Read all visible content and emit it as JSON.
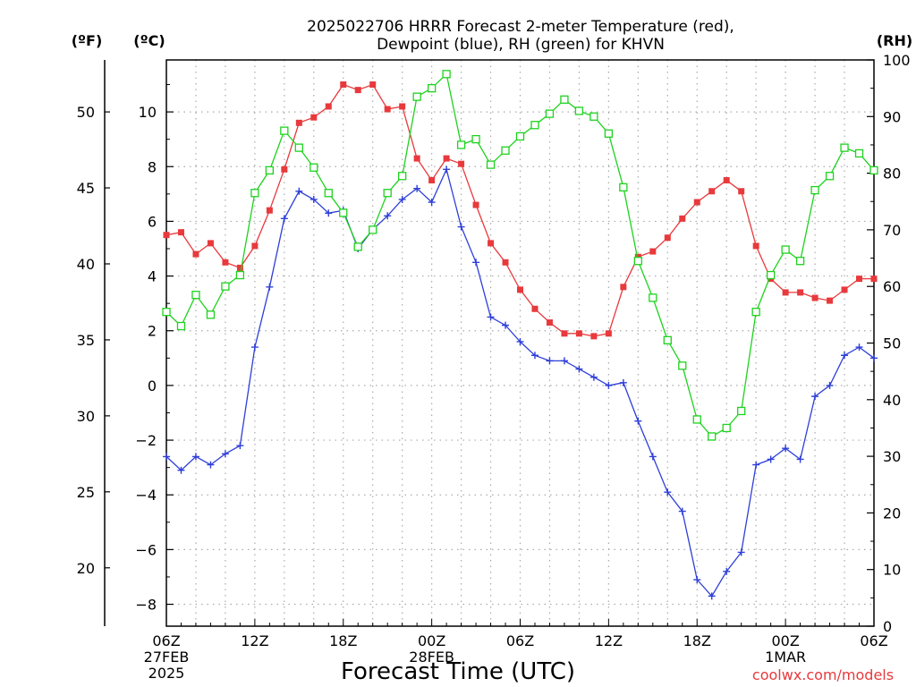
{
  "chart_data": {
    "type": "line",
    "title_line1": "2025022706 HRRR Forecast 2-meter Temperature (red),",
    "title_line2": "Dewpoint (blue), RH (green) for KHVN",
    "xlabel": "Forecast Time (UTC)",
    "units": {
      "fahrenheit": "(ºF)",
      "celsius": "(ºC)",
      "rh": "(RH)"
    },
    "credit": "coolwx.com/models",
    "x_ticks": [
      {
        "hour": 0,
        "line1": "06Z",
        "line2": "27FEB",
        "line3": "2025"
      },
      {
        "hour": 6,
        "line1": "12Z"
      },
      {
        "hour": 12,
        "line1": "18Z"
      },
      {
        "hour": 18,
        "line1": "00Z",
        "line2": "28FEB"
      },
      {
        "hour": 24,
        "line1": "06Z"
      },
      {
        "hour": 30,
        "line1": "12Z"
      },
      {
        "hour": 36,
        "line1": "18Z"
      },
      {
        "hour": 42,
        "line1": "00Z",
        "line2": "1MAR"
      },
      {
        "hour": 48,
        "line1": "06Z"
      }
    ],
    "x_range_hours": [
      0,
      48
    ],
    "y_celsius_range": [
      -8.8,
      11.9
    ],
    "y_celsius_ticks": [
      -8,
      -6,
      -4,
      -2,
      0,
      2,
      4,
      6,
      8,
      10
    ],
    "y_fahrenheit_ticks": [
      20,
      25,
      30,
      35,
      40,
      45,
      50
    ],
    "y_rh_range": [
      0,
      100
    ],
    "y_rh_ticks": [
      0,
      10,
      20,
      30,
      40,
      50,
      60,
      70,
      80,
      90,
      100
    ],
    "grid": true,
    "series": [
      {
        "name": "Temperature",
        "unit": "C",
        "color": "#e8393c",
        "marker": "filled-square",
        "values": [
          5.5,
          5.6,
          4.8,
          5.2,
          4.5,
          4.3,
          5.1,
          6.4,
          7.9,
          9.6,
          9.8,
          10.2,
          11.0,
          10.8,
          11.0,
          10.1,
          10.2,
          8.3,
          7.5,
          8.3,
          8.1,
          6.6,
          5.2,
          4.5,
          3.5,
          2.8,
          2.3,
          1.9,
          1.9,
          1.8,
          1.9,
          3.6,
          4.7,
          4.9,
          5.4,
          6.1,
          6.7,
          7.1,
          7.5,
          7.1,
          5.1,
          3.9,
          3.4,
          3.4,
          3.2,
          3.1,
          3.5,
          3.9,
          3.9
        ]
      },
      {
        "name": "Dewpoint",
        "unit": "C",
        "color": "#2e3fd8",
        "marker": "plus",
        "values": [
          -2.6,
          -3.1,
          -2.6,
          -2.9,
          -2.5,
          -2.2,
          1.4,
          3.6,
          6.1,
          7.1,
          6.8,
          6.3,
          6.4,
          5.0,
          5.7,
          6.2,
          6.8,
          7.2,
          6.7,
          7.9,
          5.8,
          4.5,
          2.5,
          2.2,
          1.6,
          1.1,
          0.9,
          0.9,
          0.6,
          0.3,
          0.0,
          0.1,
          -1.3,
          -2.6,
          -3.9,
          -4.6,
          -7.1,
          -7.7,
          -6.8,
          -6.1,
          -2.9,
          -2.7,
          -2.3,
          -2.7,
          -0.4,
          -0.0,
          1.1,
          1.4,
          1.0
        ]
      },
      {
        "name": "RH",
        "unit": "%",
        "color": "#1ed21e",
        "marker": "open-square",
        "values": [
          55.5,
          53.0,
          58.5,
          55.0,
          60.0,
          62.0,
          76.5,
          80.5,
          87.5,
          84.5,
          81.0,
          76.5,
          73.0,
          67.0,
          70.0,
          76.5,
          79.5,
          93.5,
          95.0,
          97.5,
          85.0,
          86.0,
          81.5,
          84.0,
          86.5,
          88.5,
          90.5,
          93.0,
          91.0,
          90.0,
          87.0,
          77.5,
          64.5,
          58.0,
          50.5,
          46.0,
          36.5,
          33.5,
          35.0,
          38.0,
          55.5,
          62.0,
          66.5,
          64.5,
          77.0,
          79.5,
          84.5,
          83.5,
          80.5
        ]
      }
    ]
  }
}
